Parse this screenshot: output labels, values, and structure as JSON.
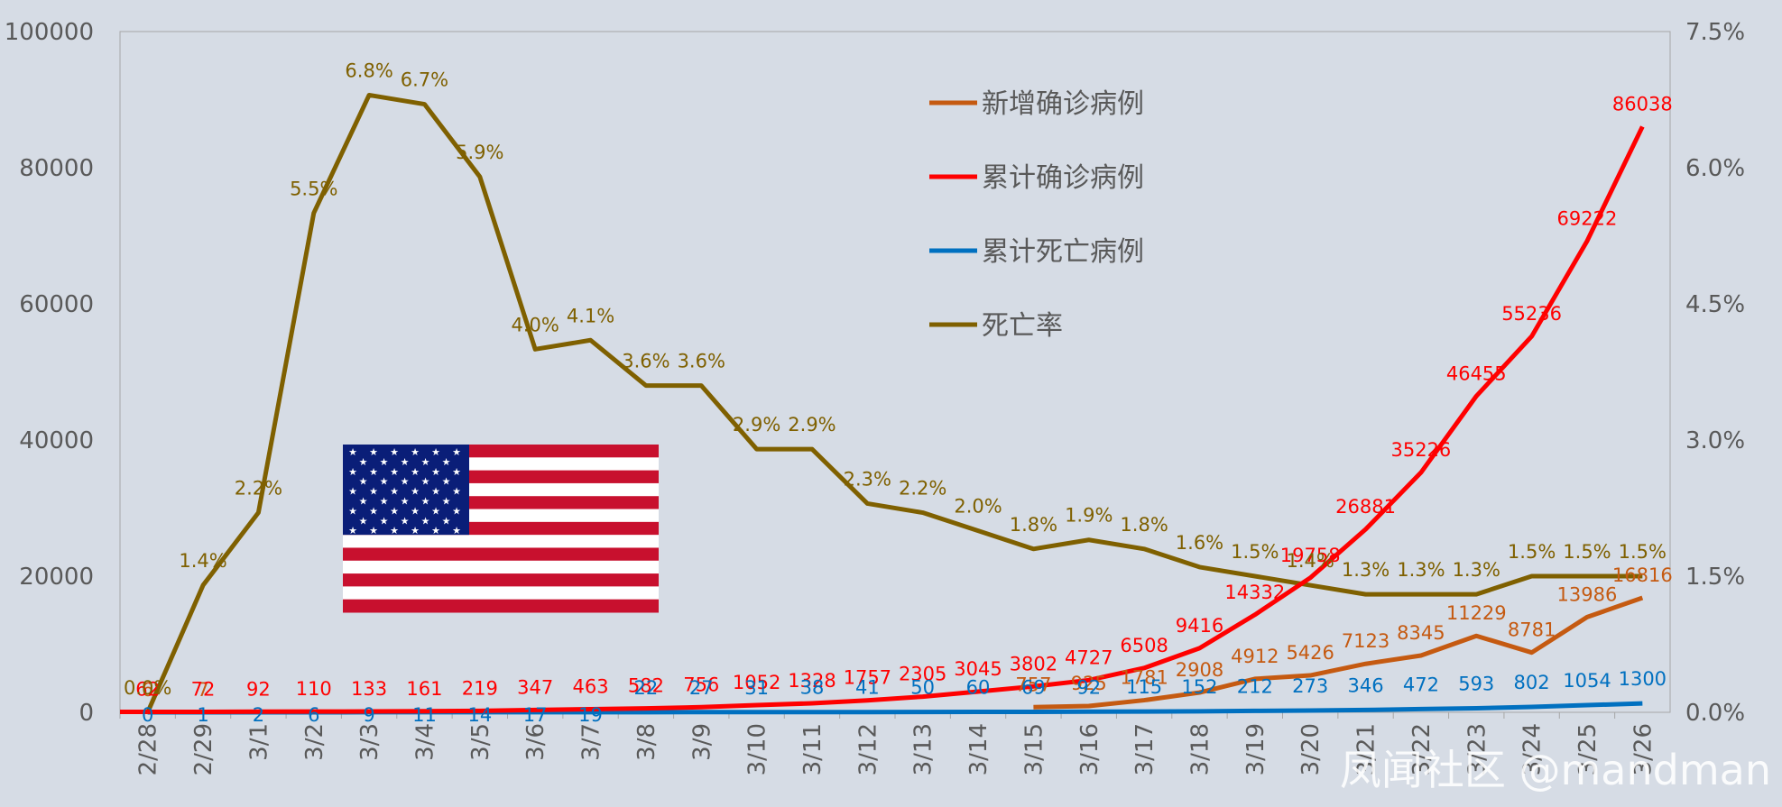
{
  "chart_data": {
    "type": "line",
    "title": "",
    "x": [
      "2/28",
      "2/29",
      "3/1",
      "3/2",
      "3/3",
      "3/4",
      "3/5",
      "3/6",
      "3/7",
      "3/8",
      "3/9",
      "3/10",
      "3/11",
      "3/12",
      "3/13",
      "3/14",
      "3/15",
      "3/16",
      "3/17",
      "3/18",
      "3/19",
      "3/20",
      "3/21",
      "3/22",
      "3/23",
      "3/24",
      "3/25",
      "3/26"
    ],
    "y_left_ticks": [
      "0",
      "20000",
      "40000",
      "60000",
      "80000",
      "100000"
    ],
    "y_left_range": [
      0,
      100000
    ],
    "y_right_ticks": [
      "0.0%",
      "1.5%",
      "3.0%",
      "4.5%",
      "6.0%",
      "7.5%"
    ],
    "y_right_range": [
      0,
      0.075
    ],
    "series": [
      {
        "name": "新增确诊病例",
        "axis": "left",
        "color": "#c55a11",
        "values": [
          6,
          7,
          null,
          null,
          null,
          null,
          null,
          null,
          null,
          null,
          null,
          null,
          null,
          null,
          null,
          null,
          757,
          925,
          1781,
          2908,
          4912,
          5426,
          7123,
          8345,
          11229,
          8781,
          13986,
          16816
        ],
        "labels": [
          "6",
          "7",
          "",
          "",
          "",
          "",
          "",
          "",
          "",
          "",
          "",
          "",
          "",
          "",
          "",
          "",
          "757",
          "925",
          "1781",
          "2908",
          "4912",
          "5426",
          "7123",
          "8345",
          "11229",
          "8781",
          "13986",
          "16816"
        ]
      },
      {
        "name": "累计确诊病例",
        "axis": "left",
        "color": "#ff0000",
        "values": [
          62,
          72,
          92,
          110,
          133,
          161,
          219,
          347,
          463,
          582,
          756,
          1052,
          1328,
          1757,
          2305,
          3045,
          3802,
          4727,
          6508,
          9416,
          14332,
          19758,
          26881,
          35226,
          46455,
          55236,
          69222,
          86038
        ],
        "labels": [
          "62",
          "72",
          "92",
          "110",
          "133",
          "161",
          "219",
          "347",
          "463",
          "582",
          "756",
          "1052",
          "1328",
          "1757",
          "2305",
          "3045",
          "3802",
          "4727",
          "6508",
          "9416",
          "14332",
          "19758",
          "26881",
          "35226",
          "46455",
          "55236",
          "69222",
          "86038"
        ]
      },
      {
        "name": "累计死亡病例",
        "axis": "left",
        "color": "#0070c0",
        "values": [
          0,
          1,
          2,
          6,
          9,
          11,
          14,
          17,
          19,
          22,
          27,
          31,
          38,
          41,
          50,
          60,
          69,
          92,
          115,
          152,
          212,
          273,
          346,
          472,
          593,
          802,
          1054,
          1300
        ],
        "labels": [
          "0",
          "1",
          "2",
          "6",
          "9",
          "11",
          "14",
          "17",
          "19",
          "22",
          "27",
          "31",
          "38",
          "41",
          "50",
          "60",
          "69",
          "92",
          "115",
          "152",
          "212",
          "273",
          "346",
          "472",
          "593",
          "802",
          "1054",
          "1300"
        ]
      },
      {
        "name": "死亡率",
        "axis": "right",
        "color": "#7f6000",
        "values": [
          0.0,
          0.014,
          0.022,
          0.055,
          0.068,
          0.067,
          0.059,
          0.04,
          0.041,
          0.036,
          0.036,
          0.029,
          0.029,
          0.023,
          0.022,
          0.02,
          0.018,
          0.019,
          0.018,
          0.016,
          0.015,
          0.014,
          0.013,
          0.013,
          0.013,
          0.015,
          0.015,
          0.015
        ],
        "labels": [
          "0.0%",
          "1.4%",
          "2.2%",
          "5.5%",
          "6.8%",
          "6.7%",
          "5.9%",
          "4.0%",
          "4.1%",
          "3.6%",
          "3.6%",
          "2.9%",
          "2.9%",
          "2.3%",
          "2.2%",
          "2.0%",
          "1.8%",
          "1.9%",
          "1.8%",
          "1.6%",
          "1.5%",
          "1.4%",
          "1.3%",
          "1.3%",
          "1.3%",
          "1.5%",
          "1.5%",
          "1.5%"
        ]
      }
    ],
    "legend_position": "top-center",
    "grid": false
  },
  "legend": [
    "新增确诊病例",
    "累计确诊病例",
    "累计死亡病例",
    "死亡率"
  ],
  "watermark": "凤闻社区 @mandman",
  "flag_icon": "us-flag-icon"
}
